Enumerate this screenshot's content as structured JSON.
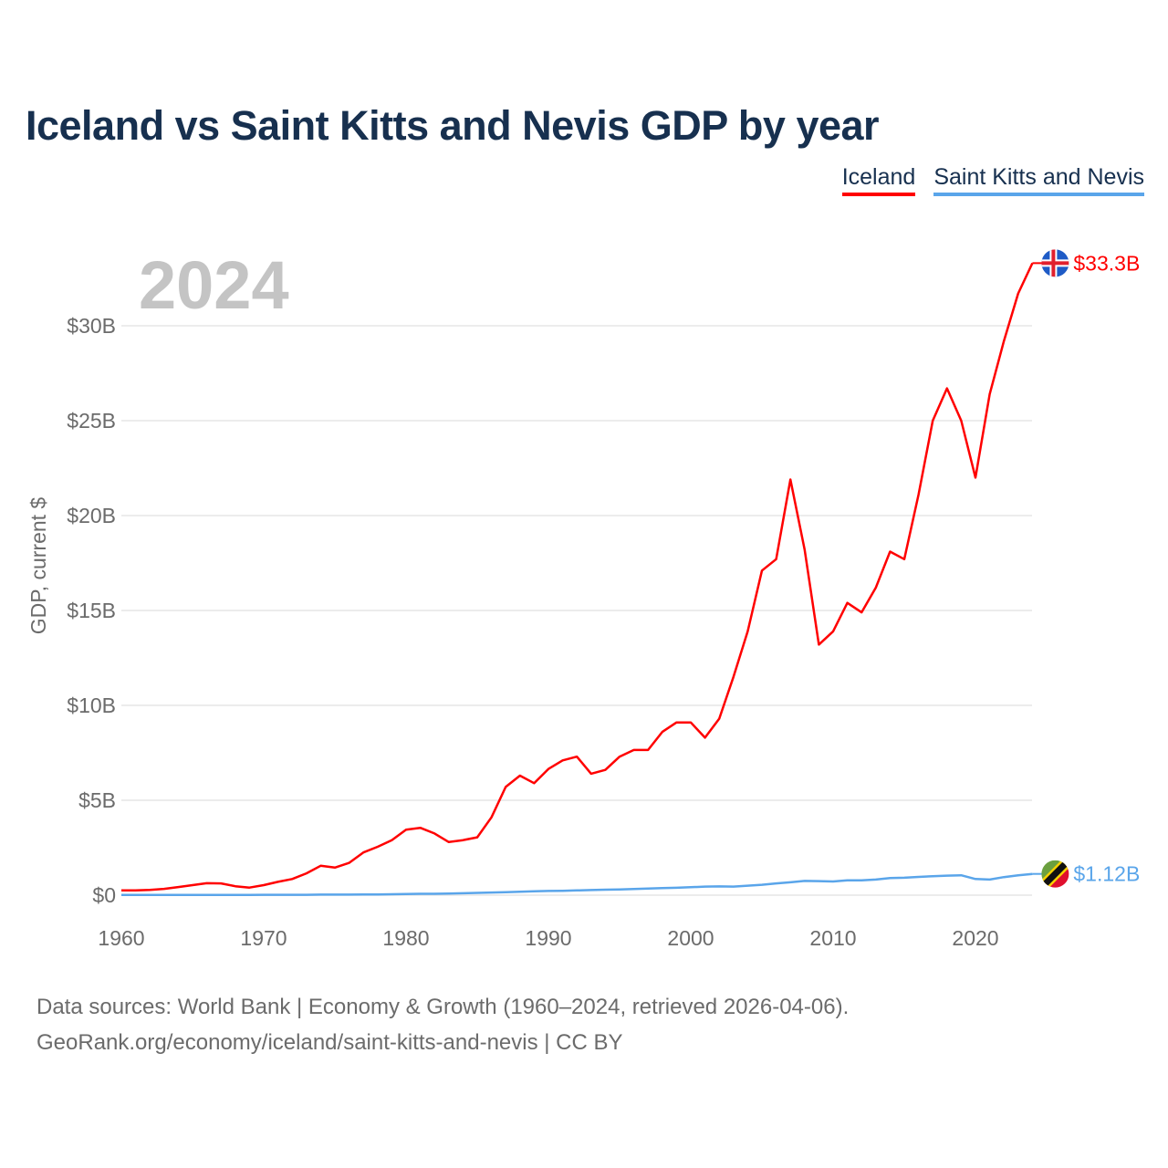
{
  "title": "Iceland vs Saint Kitts and Nevis GDP by year",
  "year_watermark": "2024",
  "footer": {
    "line1": "Data sources: World Bank | Economy & Growth (1960–2024, retrieved 2026-04-06).",
    "line2": "GeoRank.org/economy/iceland/saint-kitts-and-nevis | CC BY"
  },
  "chart_data": {
    "type": "line",
    "title": "Iceland vs Saint Kitts and Nevis GDP by year",
    "xlabel": "",
    "ylabel": "GDP, current $",
    "xlim": [
      1960,
      2024
    ],
    "ylim": [
      0,
      33.3
    ],
    "x_ticks": [
      "1960",
      "1970",
      "1980",
      "1990",
      "2000",
      "2010",
      "2020"
    ],
    "y_ticks": [
      {
        "v": 0,
        "label": "$0"
      },
      {
        "v": 5,
        "label": "$5B"
      },
      {
        "v": 10,
        "label": "$10B"
      },
      {
        "v": 15,
        "label": "$15B"
      },
      {
        "v": 20,
        "label": "$20B"
      },
      {
        "v": 25,
        "label": "$25B"
      },
      {
        "v": 30,
        "label": "$30B"
      }
    ],
    "grid": true,
    "legend_position": "top-right",
    "units": "billion USD",
    "x_start": 1960,
    "series": [
      {
        "name": "Iceland",
        "color": "#ff0000",
        "end_label": "$33.3B",
        "flag": "iceland-flag-icon",
        "values": [
          0.25,
          0.25,
          0.28,
          0.33,
          0.43,
          0.53,
          0.63,
          0.62,
          0.47,
          0.4,
          0.53,
          0.7,
          0.85,
          1.15,
          1.55,
          1.45,
          1.7,
          2.25,
          2.55,
          2.9,
          3.45,
          3.55,
          3.25,
          2.8,
          2.9,
          3.05,
          4.1,
          5.7,
          6.3,
          5.9,
          6.65,
          7.1,
          7.3,
          6.4,
          6.6,
          7.3,
          7.65,
          7.65,
          8.6,
          9.1,
          9.1,
          8.3,
          9.3,
          11.5,
          13.9,
          17.1,
          17.7,
          21.9,
          18.2,
          13.2,
          13.9,
          15.4,
          14.9,
          16.2,
          18.1,
          17.7,
          21.1,
          25.0,
          26.7,
          25.0,
          22.0,
          26.4,
          29.2,
          31.7,
          33.3
        ]
      },
      {
        "name": "Saint Kitts and Nevis",
        "color": "#5aa5ea",
        "end_label": "$1.12B",
        "flag": "saint-kitts-and-nevis-flag-icon",
        "values": [
          0.01,
          0.01,
          0.01,
          0.01,
          0.01,
          0.01,
          0.01,
          0.01,
          0.01,
          0.01,
          0.02,
          0.02,
          0.02,
          0.02,
          0.03,
          0.03,
          0.03,
          0.04,
          0.04,
          0.05,
          0.06,
          0.07,
          0.07,
          0.08,
          0.1,
          0.12,
          0.14,
          0.16,
          0.18,
          0.2,
          0.22,
          0.23,
          0.25,
          0.27,
          0.29,
          0.3,
          0.32,
          0.35,
          0.37,
          0.39,
          0.42,
          0.45,
          0.46,
          0.45,
          0.5,
          0.55,
          0.62,
          0.68,
          0.75,
          0.74,
          0.72,
          0.78,
          0.78,
          0.82,
          0.9,
          0.92,
          0.96,
          1.0,
          1.03,
          1.05,
          0.85,
          0.82,
          0.95,
          1.05,
          1.12
        ]
      }
    ]
  }
}
